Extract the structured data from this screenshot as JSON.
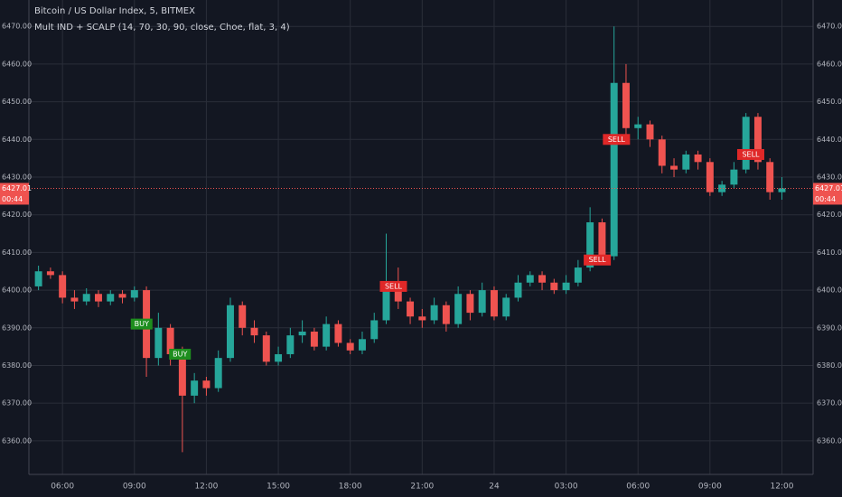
{
  "chart_data": {
    "type": "candlestick",
    "title": "Bitcoin / US Dollar Index, 5, BITMEX",
    "subtitle": "Mult IND + SCALP (14, 70, 30, 90, close, Choe, flat, 3, 4)",
    "x": [
      5.0,
      5.5,
      6.0,
      6.5,
      7.0,
      7.5,
      8.0,
      8.5,
      9.0,
      9.5,
      10.0,
      10.5,
      11.0,
      11.5,
      12.0,
      12.5,
      13.0,
      13.5,
      14.0,
      14.5,
      15.0,
      15.5,
      16.0,
      16.5,
      17.0,
      17.5,
      18.0,
      18.5,
      19.0,
      19.5,
      20.0,
      20.5,
      21.0,
      21.5,
      22.0,
      22.5,
      23.0,
      23.5,
      24.0,
      24.5,
      25.0,
      25.5,
      26.0,
      26.5,
      27.0,
      27.5,
      28.0,
      28.5,
      29.0,
      29.5,
      30.0,
      30.5,
      31.0,
      31.5,
      32.0,
      32.5,
      33.0,
      33.5,
      34.0,
      34.5,
      35.0,
      35.5,
      36.0
    ],
    "open": [
      6401,
      6405,
      6404,
      6398,
      6397,
      6399,
      6397,
      6399,
      6398,
      6400,
      6382,
      6390,
      6383,
      6372,
      6376,
      6374,
      6382,
      6396,
      6390,
      6388,
      6381,
      6383,
      6388,
      6389,
      6385,
      6391,
      6386,
      6384,
      6387,
      6392,
      6402,
      6397,
      6393,
      6392,
      6396,
      6391,
      6399,
      6394,
      6400,
      6393,
      6398,
      6402,
      6404,
      6402,
      6400,
      6402,
      6406,
      6418,
      6409,
      6455,
      6443,
      6444,
      6440,
      6433,
      6432,
      6436,
      6434,
      6426,
      6428,
      6432,
      6446,
      6434,
      6426
    ],
    "high": [
      6406.5,
      6406,
      6405,
      6400,
      6400.5,
      6400,
      6400,
      6400,
      6401,
      6401,
      6394,
      6391,
      6385,
      6378,
      6377,
      6384,
      6398,
      6397,
      6392,
      6389,
      6385,
      6390,
      6392,
      6390,
      6393,
      6392,
      6387,
      6389,
      6394,
      6415,
      6406,
      6398,
      6395,
      6398,
      6397,
      6401,
      6400,
      6402,
      6401,
      6399,
      6404,
      6405,
      6405,
      6403,
      6404,
      6408,
      6422,
      6419,
      6470,
      6460,
      6446,
      6445,
      6441,
      6435,
      6437,
      6437,
      6435,
      6429,
      6434,
      6447,
      6447,
      6435,
      6430
    ],
    "low": [
      6400,
      6403,
      6396.5,
      6395,
      6396,
      6395.5,
      6396,
      6396.5,
      6397,
      6377,
      6380,
      6380,
      6357,
      6370,
      6372,
      6373,
      6381,
      6388,
      6386,
      6380,
      6380,
      6382,
      6386,
      6384,
      6384,
      6385,
      6383,
      6383,
      6386,
      6391,
      6395,
      6391,
      6390,
      6391,
      6389,
      6390,
      6392,
      6393,
      6392,
      6392,
      6397,
      6401,
      6400,
      6399,
      6399,
      6401,
      6405,
      6407,
      6408,
      6441,
      6440,
      6438,
      6431,
      6430,
      6431,
      6432,
      6425,
      6425,
      6427,
      6431,
      6432,
      6424,
      6424
    ],
    "close": [
      6405,
      6404,
      6398,
      6397,
      6399,
      6397,
      6399,
      6398,
      6400,
      6382,
      6390,
      6383,
      6372,
      6376,
      6374,
      6382,
      6396,
      6390,
      6388,
      6381,
      6383,
      6388,
      6389,
      6385,
      6391,
      6386,
      6384,
      6387,
      6392,
      6402,
      6397,
      6393,
      6392,
      6396,
      6391,
      6399,
      6394,
      6400,
      6393,
      6398,
      6402,
      6404,
      6402,
      6400,
      6402,
      6406,
      6418,
      6409,
      6455,
      6443,
      6444,
      6440,
      6433,
      6432,
      6436,
      6434,
      6426,
      6428,
      6432,
      6446,
      6434,
      6426,
      6427.01
    ],
    "up_color": "#26a69a",
    "down_color": "#ef5350",
    "xlim": [
      4.6,
      37.3
    ],
    "xticks": [
      {
        "value": 6,
        "label": "06:00"
      },
      {
        "value": 9,
        "label": "09:00"
      },
      {
        "value": 12,
        "label": "12:00"
      },
      {
        "value": 15,
        "label": "15:00"
      },
      {
        "value": 18,
        "label": "18:00"
      },
      {
        "value": 21,
        "label": "21:00"
      },
      24,
      {
        "value": 27,
        "label": "03:00"
      },
      {
        "value": 30,
        "label": "06:00"
      },
      {
        "value": 33,
        "label": "09:00"
      },
      {
        "value": 36,
        "label": "12:00"
      }
    ],
    "ylim": [
      6351.1,
      6477.0
    ],
    "yticks": [
      {
        "value": 6360,
        "label": "6360.00"
      },
      {
        "value": 6370,
        "label": "6370.00"
      },
      {
        "value": 6380,
        "label": "6380.00"
      },
      {
        "value": 6390,
        "label": "6390.00"
      },
      {
        "value": 6400,
        "label": "6400.00"
      },
      {
        "value": 6410,
        "label": "6410.00"
      },
      {
        "value": 6420,
        "label": "6420.00"
      },
      {
        "value": 6430,
        "label": "6430.00"
      },
      {
        "value": 6440,
        "label": "6440.00"
      },
      {
        "value": 6450,
        "label": "6450.00"
      },
      {
        "value": 6460,
        "label": "6460.00"
      },
      {
        "value": 6470,
        "label": "6470.00"
      }
    ],
    "grid": true,
    "last_price": 6427.01,
    "countdown": "00:44",
    "annotations": [
      {
        "text": "BUY",
        "x": 9.3,
        "y": 6391,
        "color": "#1e8e1e"
      },
      {
        "text": "BUY",
        "x": 10.9,
        "y": 6383,
        "color": "#1e8e1e"
      },
      {
        "text": "SELL",
        "x": 19.8,
        "y": 6401,
        "color": "#e02828"
      },
      {
        "text": "SELL",
        "x": 28.3,
        "y": 6408,
        "color": "#e02828"
      },
      {
        "text": "SELL",
        "x": 29.1,
        "y": 6440,
        "color": "#e02828"
      },
      {
        "text": "SELL",
        "x": 34.7,
        "y": 6436,
        "color": "#e02828"
      }
    ]
  }
}
